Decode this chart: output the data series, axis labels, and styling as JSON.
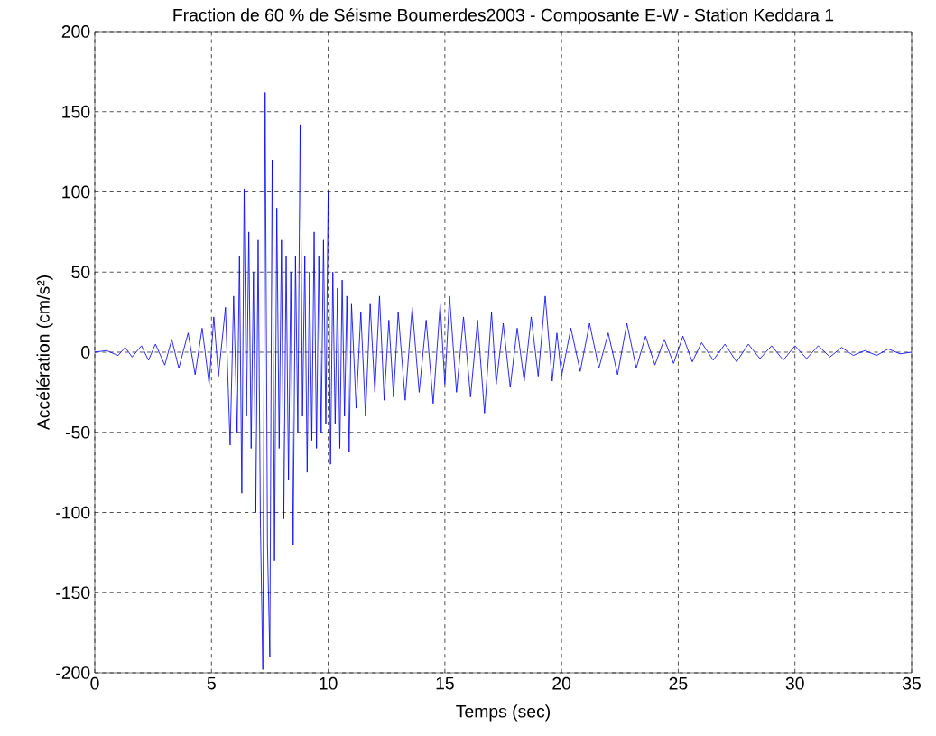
{
  "chart_data": {
    "type": "line",
    "title": "Fraction de 60 % de Séisme Boumerdes2003 - Composante E-W - Station Keddara 1",
    "xlabel": "Temps (sec)",
    "ylabel": "Accélération (cm/s²)",
    "xlim": [
      0,
      35
    ],
    "ylim": [
      -200,
      200
    ],
    "xticks": [
      0,
      5,
      10,
      15,
      20,
      25,
      30,
      35
    ],
    "yticks": [
      -200,
      -150,
      -100,
      -50,
      0,
      50,
      100,
      150,
      200
    ],
    "grid": true,
    "marker": "none",
    "line_style": "solid",
    "series": [
      {
        "color": "#0000ff",
        "x": [
          0,
          0.5,
          1,
          1.3,
          1.6,
          2,
          2.3,
          2.6,
          3,
          3.3,
          3.6,
          4,
          4.3,
          4.6,
          4.9,
          5.1,
          5.3,
          5.6,
          5.8,
          5.95,
          6.1,
          6.2,
          6.3,
          6.4,
          6.5,
          6.6,
          6.7,
          6.8,
          6.9,
          7.0,
          7.1,
          7.2,
          7.3,
          7.4,
          7.5,
          7.6,
          7.7,
          7.8,
          7.9,
          8.0,
          8.1,
          8.2,
          8.3,
          8.4,
          8.5,
          8.6,
          8.7,
          8.8,
          8.9,
          9.0,
          9.1,
          9.2,
          9.3,
          9.4,
          9.5,
          9.6,
          9.7,
          9.8,
          9.9,
          10.0,
          10.1,
          10.2,
          10.3,
          10.4,
          10.5,
          10.6,
          10.7,
          10.8,
          10.9,
          11.0,
          11.2,
          11.4,
          11.6,
          11.8,
          12.0,
          12.2,
          12.4,
          12.6,
          12.8,
          13.0,
          13.3,
          13.6,
          13.9,
          14.2,
          14.5,
          14.8,
          15.0,
          15.2,
          15.5,
          15.8,
          16.1,
          16.4,
          16.7,
          17.0,
          17.2,
          17.5,
          17.8,
          18.1,
          18.4,
          18.7,
          19.0,
          19.3,
          19.6,
          19.8,
          20.0,
          20.4,
          20.8,
          21.2,
          21.6,
          22.0,
          22.4,
          22.8,
          23.2,
          23.6,
          24.0,
          24.4,
          24.8,
          25.2,
          25.6,
          26.0,
          26.5,
          27.0,
          27.5,
          28.0,
          28.5,
          29.0,
          29.5,
          30.0,
          30.5,
          31.0,
          31.5,
          32.0,
          32.5,
          33.0,
          33.5,
          34.0,
          34.5,
          35
        ],
        "values": [
          0,
          1,
          -2,
          3,
          -3,
          4,
          -5,
          5,
          -8,
          8,
          -10,
          12,
          -14,
          15,
          -20,
          22,
          -15,
          28,
          -58,
          35,
          -50,
          60,
          -88,
          102,
          -40,
          75,
          -60,
          50,
          -100,
          70,
          -110,
          -198,
          162,
          -120,
          -190,
          120,
          -130,
          90,
          -60,
          70,
          -104,
          60,
          -80,
          50,
          -120,
          60,
          -50,
          142,
          -40,
          60,
          -75,
          50,
          -55,
          75,
          -60,
          60,
          -50,
          70,
          -45,
          100,
          -70,
          50,
          -45,
          40,
          -60,
          45,
          -40,
          35,
          -62,
          30,
          -35,
          25,
          -40,
          30,
          -25,
          35,
          -30,
          20,
          -28,
          25,
          -30,
          28,
          -25,
          20,
          -32,
          30,
          -20,
          35,
          -25,
          22,
          -28,
          20,
          -38,
          25,
          -20,
          18,
          -22,
          15,
          -18,
          22,
          -15,
          35,
          -18,
          12,
          -15,
          15,
          -12,
          18,
          -10,
          12,
          -14,
          18,
          -10,
          10,
          -8,
          8,
          -7,
          10,
          -6,
          6,
          -5,
          5,
          -6,
          5,
          -4,
          4,
          -5,
          4,
          -4,
          4,
          -3,
          3,
          -2,
          1,
          -2,
          2,
          -1,
          0
        ]
      }
    ]
  }
}
